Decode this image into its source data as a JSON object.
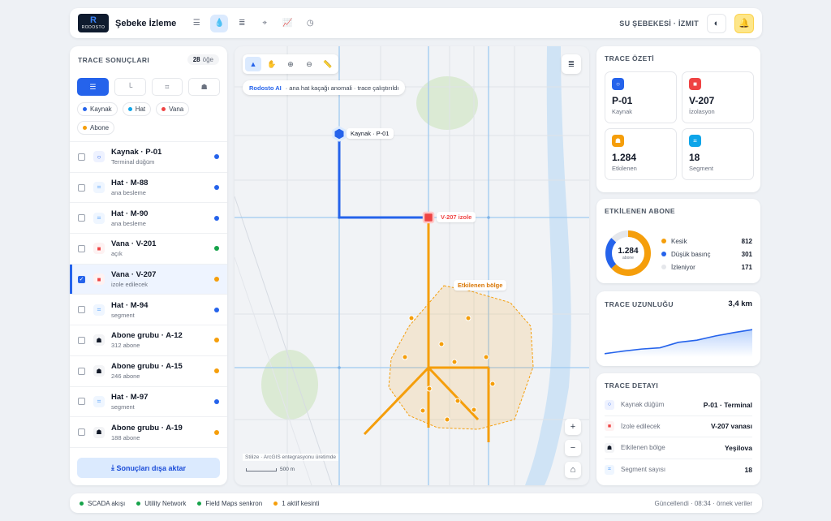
{
  "header": {
    "logo_text": "RODOSTO",
    "logo_letter": "R",
    "title": "Şebeke İzleme",
    "network": "SU ŞEBEKESİ · İZMIT",
    "nav_icons": [
      "menu-icon",
      "drop-icon",
      "list-icon",
      "map-icon",
      "chart-icon",
      "clock-icon"
    ],
    "active_nav": "drop-icon"
  },
  "trace_results": {
    "title": "TRACE SONUÇLARI",
    "count": "28",
    "count_unit": "öğe",
    "filter_icons": [
      "list-icon",
      "branch-icon",
      "segment-icon",
      "subscriber-icon"
    ],
    "chips": [
      {
        "label": "Kaynak",
        "color": "#2563eb"
      },
      {
        "label": "Hat",
        "color": "#0ea5e9"
      },
      {
        "label": "Vana",
        "color": "#ef4444"
      },
      {
        "label": "Abone",
        "color": "#f59e0b"
      }
    ],
    "items": [
      {
        "title": "Kaynak · P-01",
        "sub": "Terminal düğüm",
        "icon": "○",
        "icon_bg": "#eef2ff",
        "icon_color": "#2563eb",
        "dot": "#2563eb",
        "checked": false
      },
      {
        "title": "Hat · M-88",
        "sub": "ana besleme",
        "icon": "⌗",
        "icon_bg": "#eff6ff",
        "icon_color": "#60a5fa",
        "dot": "#2563eb",
        "checked": false
      },
      {
        "title": "Hat · M-90",
        "sub": "ana besleme",
        "icon": "⌗",
        "icon_bg": "#eff6ff",
        "icon_color": "#60a5fa",
        "dot": "#2563eb",
        "checked": false
      },
      {
        "title": "Vana · V-201",
        "sub": "açık",
        "icon": "■",
        "icon_bg": "#fef2f2",
        "icon_color": "#ef4444",
        "dot": "#16a34a",
        "checked": false
      },
      {
        "title": "Vana · V-207",
        "sub": "izole edilecek",
        "icon": "■",
        "icon_bg": "#fef2f2",
        "icon_color": "#ef4444",
        "dot": "#f59e0b",
        "checked": true
      },
      {
        "title": "Hat · M-94",
        "sub": "segment",
        "icon": "⌗",
        "icon_bg": "#eff6ff",
        "icon_color": "#60a5fa",
        "dot": "#2563eb",
        "checked": false
      },
      {
        "title": "Abone grubu · A-12",
        "sub": "312 abone",
        "icon": "☗",
        "icon_bg": "#f3f4f6",
        "icon_color": "#111827",
        "dot": "#f59e0b",
        "checked": false
      },
      {
        "title": "Abone grubu · A-15",
        "sub": "246 abone",
        "icon": "☗",
        "icon_bg": "#f3f4f6",
        "icon_color": "#111827",
        "dot": "#f59e0b",
        "checked": false
      },
      {
        "title": "Hat · M-97",
        "sub": "segment",
        "icon": "⌗",
        "icon_bg": "#eff6ff",
        "icon_color": "#60a5fa",
        "dot": "#2563eb",
        "checked": false
      },
      {
        "title": "Abone grubu · A-19",
        "sub": "188 abone",
        "icon": "☗",
        "icon_bg": "#f3f4f6",
        "icon_color": "#111827",
        "dot": "#f59e0b",
        "checked": false
      }
    ],
    "export_label": "Sonuçları dışa aktar"
  },
  "map": {
    "ai_name": "Rodosto AI",
    "ai_text": "· ana hat kaçağı anomali · trace çalıştırıldı",
    "label_source": "Kaynak · P-01",
    "label_valve": "V-207 izole",
    "label_zone": "Etkilenen bölge",
    "attribution": "Stilize · ArcGIS entegrasyonu üretimde",
    "scale": "500 m",
    "tools": [
      "pointer-icon",
      "hand-icon",
      "crosshair-icon",
      "zoom-out-icon",
      "measure-icon"
    ]
  },
  "summary": {
    "title": "TRACE ÖZETİ",
    "tiles": [
      {
        "value": "P-01",
        "label": "Kaynak",
        "icon": "○",
        "color": "#2563eb"
      },
      {
        "value": "V-207",
        "label": "İzolasyon",
        "icon": "■",
        "color": "#ef4444"
      },
      {
        "value": "1.284",
        "label": "Etkilenen",
        "icon": "☗",
        "color": "#f59e0b"
      },
      {
        "value": "18",
        "label": "Segment",
        "icon": "⌗",
        "color": "#0ea5e9"
      }
    ]
  },
  "subscribers": {
    "title": "ETKİLENEN ABONE",
    "total": "1.284",
    "total_label": "abone",
    "rows": [
      {
        "label": "Kesik",
        "value": 812,
        "color": "#f59e0b"
      },
      {
        "label": "Düşük basınç",
        "value": 301,
        "color": "#2563eb"
      },
      {
        "label": "İzleniyor",
        "value": 171,
        "color": "#e5e7eb"
      }
    ]
  },
  "length": {
    "title": "TRACE UZUNLUĞU",
    "value": "3,4 km",
    "trend": [
      0.08,
      0.14,
      0.19,
      0.22,
      0.35,
      0.4,
      0.5,
      0.58,
      0.65
    ]
  },
  "detail": {
    "title": "TRACE DETAYI",
    "rows": [
      {
        "label": "Kaynak düğüm",
        "value": "P-01 · Terminal",
        "icon": "○",
        "color": "#2563eb",
        "bg": "#eef2ff"
      },
      {
        "label": "İzole edilecek",
        "value": "V-207 vanası",
        "icon": "■",
        "color": "#ef4444",
        "bg": "#fef2f2"
      },
      {
        "label": "Etkilenen bölge",
        "value": "Yeşilova",
        "icon": "☗",
        "color": "#111827",
        "bg": "#f3f4f6"
      },
      {
        "label": "Segment sayısı",
        "value": "18",
        "icon": "⌗",
        "color": "#60a5fa",
        "bg": "#eff6ff"
      }
    ]
  },
  "footer": {
    "items": [
      {
        "label": "SCADA akışı",
        "color": "#16a34a"
      },
      {
        "label": "Utility Network",
        "color": "#16a34a"
      },
      {
        "label": "Field Maps senkron",
        "color": "#16a34a"
      },
      {
        "label": "1 aktif kesinti",
        "color": "#f59e0b"
      }
    ],
    "updated": "Güncellendi · 08:34 · örnek veriler"
  }
}
